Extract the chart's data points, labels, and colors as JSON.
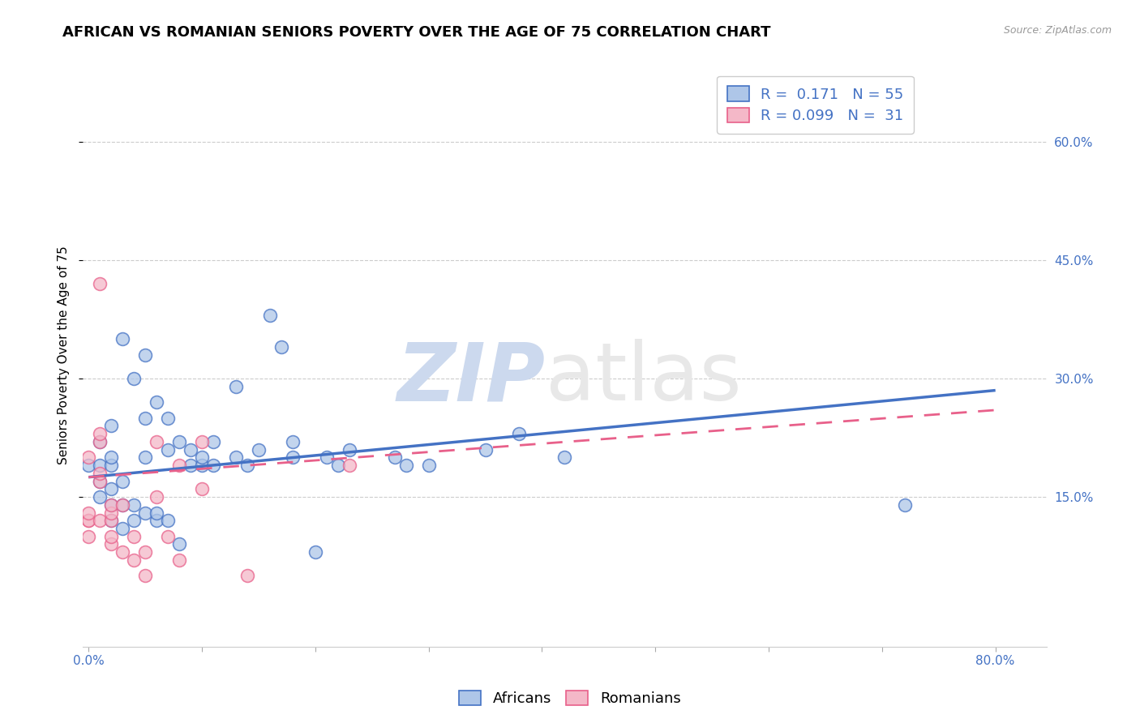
{
  "title": "AFRICAN VS ROMANIAN SENIORS POVERTY OVER THE AGE OF 75 CORRELATION CHART",
  "source": "Source: ZipAtlas.com",
  "xlabel_ticks_shown": [
    "0.0%",
    "80.0%"
  ],
  "xlabel_vals_shown": [
    0.0,
    0.8
  ],
  "xlabel_tick_positions": [
    0.0,
    0.1,
    0.2,
    0.3,
    0.4,
    0.5,
    0.6,
    0.7,
    0.8
  ],
  "ylabel": "Seniors Poverty Over the Age of 75",
  "ylabel_right_ticks": [
    "15.0%",
    "30.0%",
    "45.0%",
    "60.0%"
  ],
  "ylabel_right_vals": [
    0.15,
    0.3,
    0.45,
    0.6
  ],
  "ylim": [
    -0.04,
    0.7
  ],
  "xlim": [
    -0.005,
    0.845
  ],
  "african_color": "#aec6e8",
  "romanian_color": "#f4b8c8",
  "african_line_color": "#4472C4",
  "romanian_line_color": "#E8608A",
  "african_R": 0.171,
  "african_N": 55,
  "romanian_R": 0.099,
  "romanian_N": 31,
  "africans_x": [
    0.0,
    0.01,
    0.01,
    0.01,
    0.01,
    0.02,
    0.02,
    0.02,
    0.02,
    0.02,
    0.02,
    0.03,
    0.03,
    0.03,
    0.03,
    0.04,
    0.04,
    0.04,
    0.05,
    0.05,
    0.05,
    0.05,
    0.06,
    0.06,
    0.06,
    0.07,
    0.07,
    0.07,
    0.08,
    0.08,
    0.09,
    0.09,
    0.1,
    0.1,
    0.11,
    0.11,
    0.13,
    0.13,
    0.14,
    0.15,
    0.16,
    0.17,
    0.18,
    0.18,
    0.2,
    0.21,
    0.22,
    0.23,
    0.27,
    0.28,
    0.3,
    0.35,
    0.38,
    0.42,
    0.72
  ],
  "africans_y": [
    0.19,
    0.15,
    0.17,
    0.19,
    0.22,
    0.12,
    0.14,
    0.16,
    0.19,
    0.2,
    0.24,
    0.11,
    0.14,
    0.17,
    0.35,
    0.12,
    0.14,
    0.3,
    0.13,
    0.2,
    0.25,
    0.33,
    0.12,
    0.13,
    0.27,
    0.12,
    0.21,
    0.25,
    0.09,
    0.22,
    0.19,
    0.21,
    0.19,
    0.2,
    0.19,
    0.22,
    0.2,
    0.29,
    0.19,
    0.21,
    0.38,
    0.34,
    0.2,
    0.22,
    0.08,
    0.2,
    0.19,
    0.21,
    0.2,
    0.19,
    0.19,
    0.21,
    0.23,
    0.2,
    0.14
  ],
  "romanians_x": [
    0.0,
    0.0,
    0.0,
    0.0,
    0.0,
    0.01,
    0.01,
    0.01,
    0.01,
    0.01,
    0.01,
    0.02,
    0.02,
    0.02,
    0.02,
    0.02,
    0.03,
    0.03,
    0.04,
    0.04,
    0.05,
    0.05,
    0.06,
    0.06,
    0.07,
    0.08,
    0.08,
    0.1,
    0.1,
    0.14,
    0.23
  ],
  "romanians_y": [
    0.1,
    0.12,
    0.12,
    0.13,
    0.2,
    0.12,
    0.17,
    0.18,
    0.22,
    0.23,
    0.42,
    0.09,
    0.1,
    0.12,
    0.13,
    0.14,
    0.08,
    0.14,
    0.07,
    0.1,
    0.05,
    0.08,
    0.15,
    0.22,
    0.1,
    0.07,
    0.19,
    0.16,
    0.22,
    0.05,
    0.19
  ],
  "african_line_x0": 0.0,
  "african_line_y0": 0.175,
  "african_line_x1": 0.8,
  "african_line_y1": 0.285,
  "romanian_line_x0": 0.0,
  "romanian_line_y0": 0.175,
  "romanian_line_x1": 0.8,
  "romanian_line_y1": 0.26,
  "watermark_zip": "ZIP",
  "watermark_atlas": "atlas",
  "watermark_color": "#ccd9ee",
  "background_color": "#ffffff",
  "grid_color": "#cccccc",
  "title_fontsize": 13,
  "axis_fontsize": 11,
  "tick_fontsize": 11,
  "legend_fontsize": 13,
  "dot_size": 130,
  "dot_alpha": 0.75,
  "dot_linewidth": 1.2
}
